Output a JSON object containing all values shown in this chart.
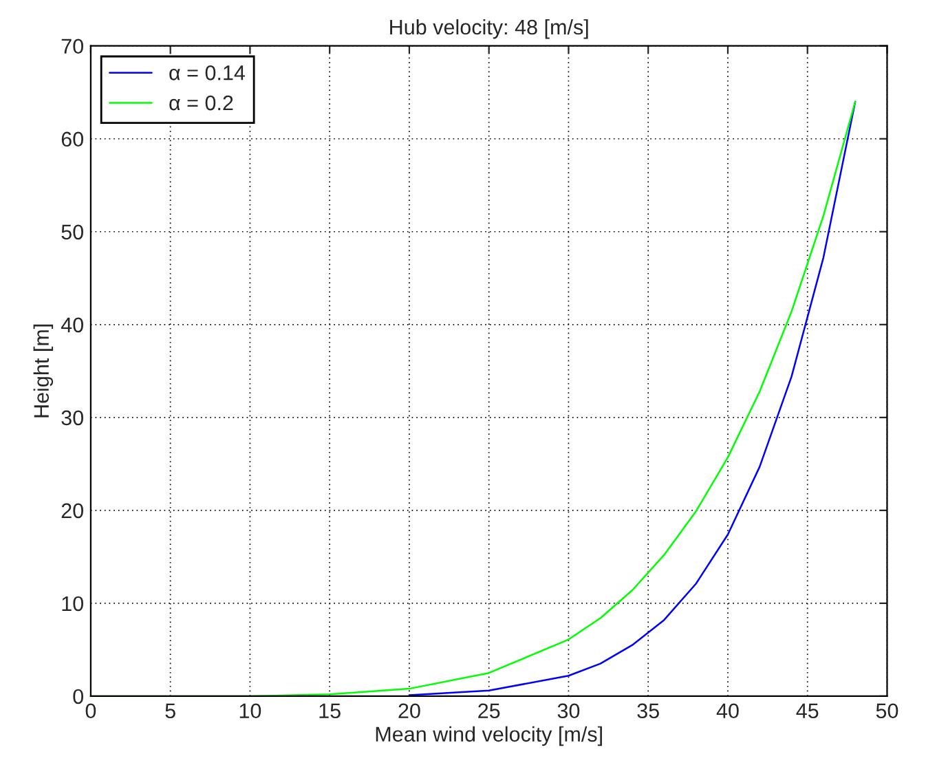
{
  "chart_data": {
    "type": "line",
    "title": "Hub velocity: 48 [m/s]",
    "xlabel": "Mean wind velocity [m/s]",
    "ylabel": "Height [m]",
    "xlim": [
      0,
      50
    ],
    "ylim": [
      0,
      70
    ],
    "xticks": [
      0,
      5,
      10,
      15,
      20,
      25,
      30,
      35,
      40,
      45,
      50
    ],
    "yticks": [
      0,
      10,
      20,
      30,
      40,
      50,
      60,
      70
    ],
    "grid": true,
    "legend": "top left",
    "line_style": "solid",
    "marker": "none",
    "series": [
      {
        "name": "α = 0.14",
        "color": "#0000ff",
        "x": [
          20,
          25,
          30,
          32,
          34,
          36,
          38,
          40,
          42,
          44,
          46,
          48
        ],
        "values": [
          0.1,
          0.6,
          2.2,
          3.5,
          5.5,
          8.2,
          12.1,
          17.4,
          24.7,
          34.4,
          47.2,
          64
        ]
      },
      {
        "name": "α = 0.2",
        "color": "#00ff00",
        "x": [
          0,
          10,
          15,
          20,
          25,
          30,
          32,
          34,
          36,
          38,
          40,
          42,
          44,
          46,
          48
        ],
        "values": [
          0,
          0,
          0.2,
          0.8,
          2.5,
          6.1,
          8.4,
          11.4,
          15.2,
          19.9,
          25.7,
          32.8,
          41.4,
          51.7,
          64
        ]
      }
    ]
  }
}
